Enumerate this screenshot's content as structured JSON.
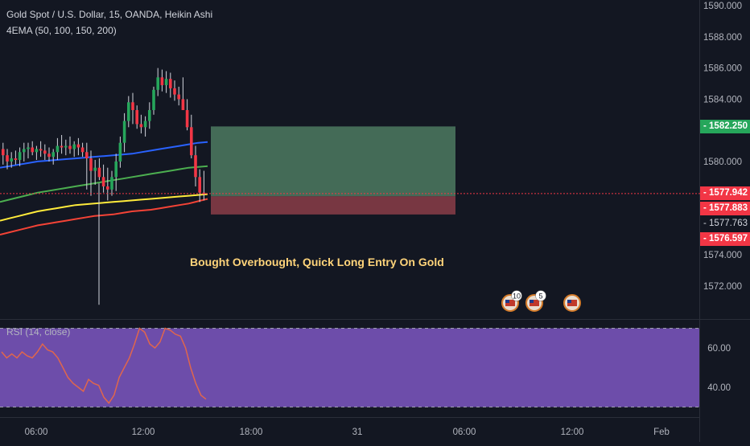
{
  "header": {
    "symbol_line": "Gold Spot / U.S. Dollar, 15, OANDA, Heikin Ashi",
    "indicator_line": "4EMA (50, 100, 150, 200)"
  },
  "annotation": {
    "text": "Bought Overbought, Quick Long Entry On Gold",
    "color": "#ffd47a"
  },
  "event_badges": [
    {
      "name": "us-flag-event-icon",
      "count": "10"
    },
    {
      "name": "us-flag-event-icon",
      "count": "5"
    },
    {
      "name": "us-flag-event-icon",
      "count": ""
    }
  ],
  "price_tags": [
    {
      "label": "1582.250",
      "value": 1582.25,
      "color": "#26a65b",
      "name": "take-profit-price-tag"
    },
    {
      "label": "1577.942",
      "value": 1577.942,
      "color": "#f23645",
      "name": "last-price-tag"
    },
    {
      "label": "1577.883",
      "value": 1577.883,
      "color": "#f23645",
      "name": "ema-price-tag"
    },
    {
      "label": "1577.763",
      "value": 1577.763,
      "color": "#131722",
      "name": "entry-price-tag"
    },
    {
      "label": "1576.597",
      "value": 1576.597,
      "color": "#f23645",
      "name": "stop-loss-price-tag"
    }
  ],
  "colors": {
    "background": "#131722",
    "up_candle": "#26a65b",
    "down_candle": "#f23645",
    "ema_50": "#2962ff",
    "ema_100": "#4caf50",
    "ema_150": "#ffeb3b",
    "ema_200": "#f44336",
    "profit_zone": "#4e7a60",
    "loss_zone": "#8b3d48",
    "rsi_band": "#7e57c2",
    "rsi_line": "#e0664c"
  },
  "chart_data": [
    {
      "type": "candlestick",
      "title": "Gold Spot / U.S. Dollar, 15, OANDA, Heikin Ashi",
      "y_ticks": [
        "1590.000",
        "1588.000",
        "1586.000",
        "1584.000",
        "1580.000",
        "1574.000",
        "1572.000"
      ],
      "y_tick_values": [
        1590,
        1588,
        1586,
        1584,
        1580,
        1574,
        1572
      ],
      "x_ticks": [
        "06:00",
        "12:00",
        "18:00",
        "31",
        "06:00",
        "12:00",
        "Feb"
      ],
      "ylim": [
        1569.8,
        1590.1
      ],
      "candles_ohlc": [
        [
          1580.8,
          1581.2,
          1579.8,
          1580.4
        ],
        [
          1580.4,
          1580.8,
          1579.5,
          1580.0
        ],
        [
          1580.0,
          1580.6,
          1579.6,
          1580.2
        ],
        [
          1580.2,
          1580.7,
          1579.8,
          1580.1
        ],
        [
          1580.1,
          1580.9,
          1579.7,
          1580.6
        ],
        [
          1580.6,
          1581.2,
          1580.0,
          1580.8
        ],
        [
          1580.8,
          1581.2,
          1580.2,
          1580.9
        ],
        [
          1580.9,
          1581.3,
          1580.4,
          1580.6
        ],
        [
          1580.6,
          1581.0,
          1580.1,
          1580.8
        ],
        [
          1580.8,
          1581.3,
          1580.3,
          1580.7
        ],
        [
          1580.7,
          1581.1,
          1580.1,
          1580.5
        ],
        [
          1580.5,
          1580.9,
          1580.0,
          1580.3
        ],
        [
          1580.3,
          1580.8,
          1579.8,
          1580.6
        ],
        [
          1580.6,
          1581.5,
          1580.1,
          1581.0
        ],
        [
          1581.0,
          1581.7,
          1580.5,
          1580.9
        ],
        [
          1580.9,
          1581.4,
          1580.4,
          1581.0
        ],
        [
          1581.0,
          1581.6,
          1580.5,
          1580.8
        ],
        [
          1580.8,
          1581.3,
          1580.3,
          1581.1
        ],
        [
          1581.1,
          1581.5,
          1580.4,
          1580.9
        ],
        [
          1580.9,
          1581.2,
          1580.3,
          1580.6
        ],
        [
          1580.6,
          1581.2,
          1578.2,
          1580.2
        ],
        [
          1580.2,
          1580.7,
          1577.8,
          1579.4
        ],
        [
          1579.4,
          1580.1,
          1578.5,
          1579.6
        ],
        [
          1579.6,
          1580.2,
          1578.8,
          1579.0
        ],
        [
          1579.0,
          1579.8,
          1578.0,
          1578.4
        ],
        [
          1578.4,
          1579.6,
          1577.5,
          1578.2
        ],
        [
          1578.2,
          1579.4,
          1577.8,
          1579.0
        ],
        [
          1579.0,
          1580.5,
          1578.1,
          1580.0
        ],
        [
          1580.0,
          1581.6,
          1579.6,
          1581.2
        ],
        [
          1581.2,
          1583.1,
          1580.6,
          1582.6
        ],
        [
          1582.6,
          1584.2,
          1582.2,
          1583.8
        ],
        [
          1583.8,
          1584.4,
          1582.4,
          1583.3
        ],
        [
          1583.3,
          1583.6,
          1582.1,
          1582.4
        ],
        [
          1582.4,
          1583.0,
          1581.8,
          1582.2
        ],
        [
          1582.2,
          1582.9,
          1581.6,
          1582.6
        ],
        [
          1582.6,
          1583.8,
          1582.1,
          1583.3
        ],
        [
          1583.3,
          1584.8,
          1583.0,
          1584.6
        ],
        [
          1584.6,
          1586.0,
          1584.2,
          1585.4
        ],
        [
          1585.4,
          1585.9,
          1584.5,
          1584.9
        ],
        [
          1584.9,
          1585.8,
          1584.4,
          1585.3
        ],
        [
          1585.3,
          1585.7,
          1584.1,
          1584.7
        ],
        [
          1584.7,
          1585.2,
          1583.9,
          1584.3
        ],
        [
          1584.3,
          1584.8,
          1583.6,
          1584.0
        ],
        [
          1584.0,
          1585.4,
          1583.5,
          1583.3
        ],
        [
          1583.3,
          1584.0,
          1582.0,
          1582.2
        ],
        [
          1582.2,
          1583.0,
          1580.2,
          1580.4
        ],
        [
          1580.4,
          1581.0,
          1578.4,
          1579.0
        ],
        [
          1579.0,
          1579.5,
          1577.4,
          1578.0
        ],
        [
          1578.0,
          1579.4,
          1577.5,
          1577.9
        ]
      ],
      "ema_series": [
        {
          "name": "50",
          "color": "#2962ff",
          "values": [
            1579.6,
            1579.7,
            1579.8,
            1579.9,
            1580.0,
            1580.05,
            1580.1,
            1580.15,
            1580.2,
            1580.25,
            1580.3,
            1580.35,
            1580.4,
            1580.45,
            1580.5,
            1580.6,
            1580.7,
            1580.8,
            1580.9,
            1581.0,
            1581.1,
            1581.2,
            1581.25
          ]
        },
        {
          "name": "100",
          "color": "#4caf50",
          "values": [
            1577.4,
            1577.55,
            1577.7,
            1577.85,
            1578.0,
            1578.1,
            1578.2,
            1578.3,
            1578.4,
            1578.5,
            1578.6,
            1578.7,
            1578.8,
            1578.9,
            1579.0,
            1579.1,
            1579.2,
            1579.3,
            1579.4,
            1579.5,
            1579.6,
            1579.65,
            1579.7
          ]
        },
        {
          "name": "150",
          "color": "#ffeb3b",
          "values": [
            1576.2,
            1576.35,
            1576.5,
            1576.65,
            1576.8,
            1576.9,
            1577.0,
            1577.1,
            1577.2,
            1577.25,
            1577.3,
            1577.35,
            1577.4,
            1577.45,
            1577.5,
            1577.55,
            1577.6,
            1577.65,
            1577.7,
            1577.75,
            1577.8,
            1577.85,
            1577.9
          ]
        },
        {
          "name": "200",
          "color": "#f44336",
          "values": [
            1575.3,
            1575.45,
            1575.6,
            1575.75,
            1575.9,
            1576.0,
            1576.1,
            1576.2,
            1576.3,
            1576.4,
            1576.5,
            1576.55,
            1576.6,
            1576.7,
            1576.8,
            1576.85,
            1576.9,
            1577.0,
            1577.1,
            1577.2,
            1577.3,
            1577.45,
            1577.6
          ]
        }
      ],
      "position": {
        "take_profit": 1582.25,
        "entry": 1577.763,
        "stop_loss": 1576.597
      }
    },
    {
      "type": "line",
      "title": "RSI (14, close)",
      "y_ticks": [
        "60.00",
        "40.00"
      ],
      "y_tick_values": [
        60,
        40
      ],
      "ylim": [
        23,
        76
      ],
      "band": [
        30,
        70
      ],
      "series": [
        {
          "name": "RSI (14, close)",
          "values": [
            58,
            55,
            57,
            55,
            58,
            56,
            55,
            58,
            62,
            59,
            58,
            55,
            50,
            45,
            42,
            40,
            38,
            44,
            42,
            41,
            35,
            32,
            36,
            45,
            50,
            55,
            62,
            70,
            68,
            62,
            60,
            63,
            70,
            69,
            67,
            66,
            60,
            50,
            42,
            36,
            34
          ]
        }
      ]
    }
  ]
}
